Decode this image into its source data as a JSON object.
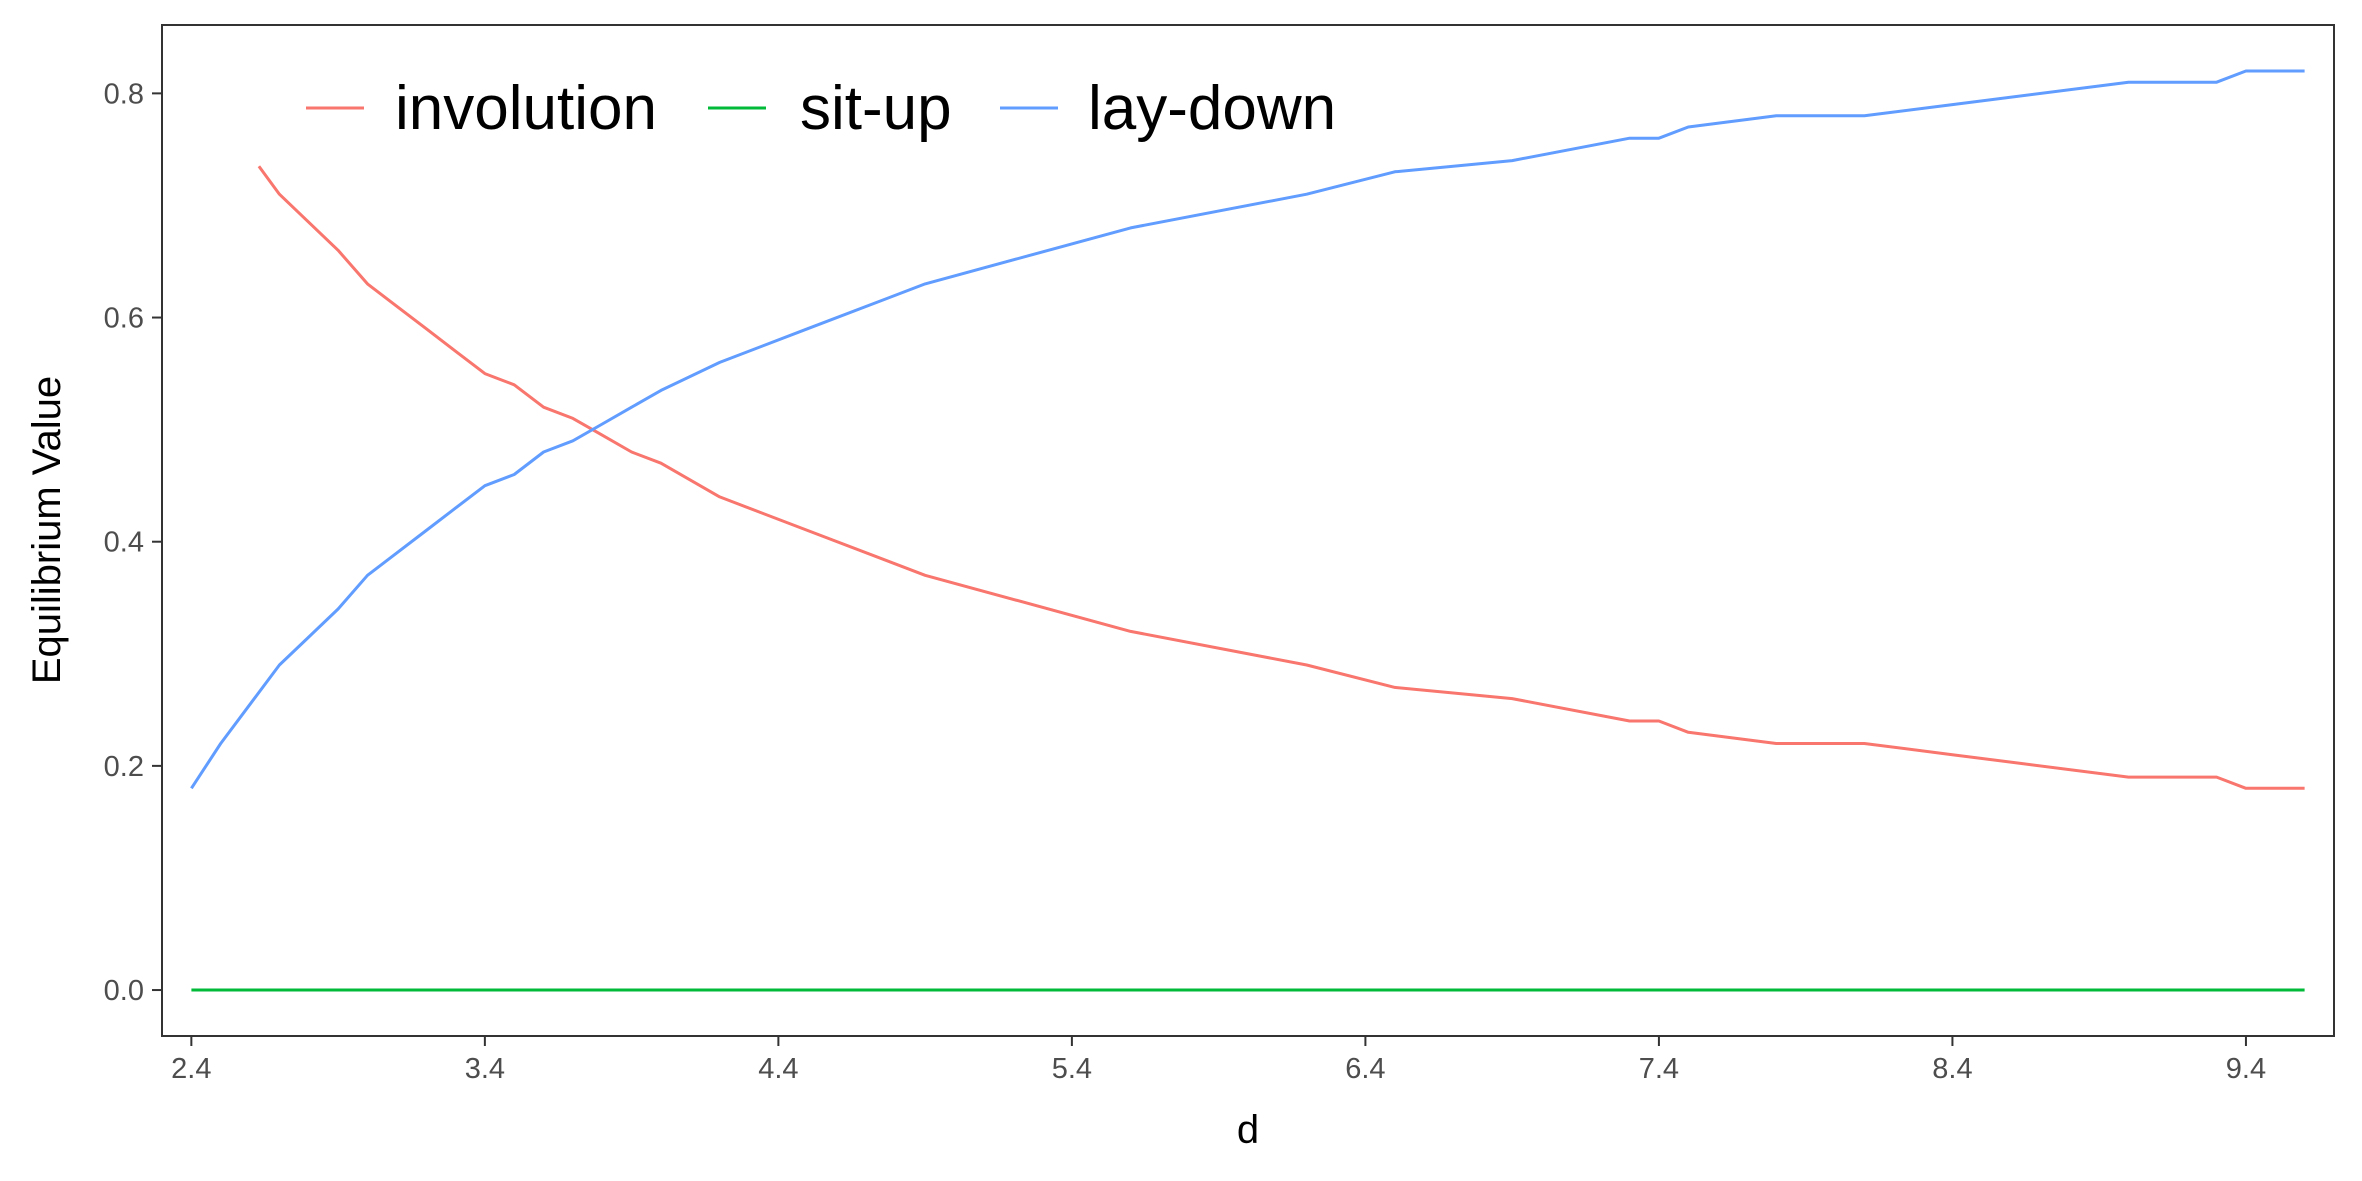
{
  "chart_data": {
    "type": "line",
    "xlabel": "d",
    "ylabel": "Equilibrium Value",
    "xlim": [
      2.4,
      9.6
    ],
    "ylim": [
      0.0,
      0.82
    ],
    "x_ticks": [
      2.4,
      3.4,
      4.4,
      5.4,
      6.4,
      7.4,
      8.4,
      9.4
    ],
    "x_tick_labels": [
      "2.4",
      "3.4",
      "4.4",
      "5.4",
      "6.4",
      "7.4",
      "8.4",
      "9.4"
    ],
    "y_ticks": [
      0.0,
      0.2,
      0.4,
      0.6,
      0.8
    ],
    "y_tick_labels": [
      "0.0",
      "0.2",
      "0.4",
      "0.6",
      "0.8"
    ],
    "grid": false,
    "legend_position": "top-left",
    "series": [
      {
        "name": "involution",
        "color": "#F8766D",
        "x": [
          2.63,
          2.7,
          2.8,
          2.9,
          3.0,
          3.1,
          3.2,
          3.3,
          3.4,
          3.5,
          3.6,
          3.7,
          3.8,
          3.9,
          4.0,
          4.2,
          4.5,
          4.9,
          5.6,
          6.2,
          6.5,
          6.9,
          7.3,
          7.4,
          7.5,
          7.8,
          8.1,
          8.4,
          9.0,
          9.3,
          9.4,
          9.6
        ],
        "y": [
          0.735,
          0.71,
          0.685,
          0.66,
          0.63,
          0.61,
          0.59,
          0.57,
          0.55,
          0.54,
          0.52,
          0.51,
          0.495,
          0.48,
          0.47,
          0.44,
          0.41,
          0.37,
          0.32,
          0.29,
          0.27,
          0.26,
          0.24,
          0.24,
          0.23,
          0.22,
          0.22,
          0.21,
          0.19,
          0.19,
          0.18,
          0.18
        ]
      },
      {
        "name": "sit-up",
        "color": "#00BA38",
        "x": [
          2.4,
          9.6
        ],
        "y": [
          0.0,
          0.0
        ]
      },
      {
        "name": "lay-down",
        "color": "#619CFF",
        "x": [
          2.4,
          2.5,
          2.6,
          2.7,
          2.8,
          2.9,
          3.0,
          3.1,
          3.2,
          3.3,
          3.4,
          3.5,
          3.6,
          3.7,
          3.8,
          3.9,
          4.0,
          4.2,
          4.5,
          4.9,
          5.6,
          6.2,
          6.5,
          6.9,
          7.3,
          7.4,
          7.5,
          7.8,
          8.1,
          8.4,
          9.0,
          9.3,
          9.4,
          9.6
        ],
        "y": [
          0.18,
          0.22,
          0.255,
          0.29,
          0.315,
          0.34,
          0.37,
          0.39,
          0.41,
          0.43,
          0.45,
          0.46,
          0.48,
          0.49,
          0.505,
          0.52,
          0.535,
          0.56,
          0.59,
          0.63,
          0.68,
          0.71,
          0.73,
          0.74,
          0.76,
          0.76,
          0.77,
          0.78,
          0.78,
          0.79,
          0.81,
          0.81,
          0.82,
          0.82
        ]
      }
    ]
  }
}
